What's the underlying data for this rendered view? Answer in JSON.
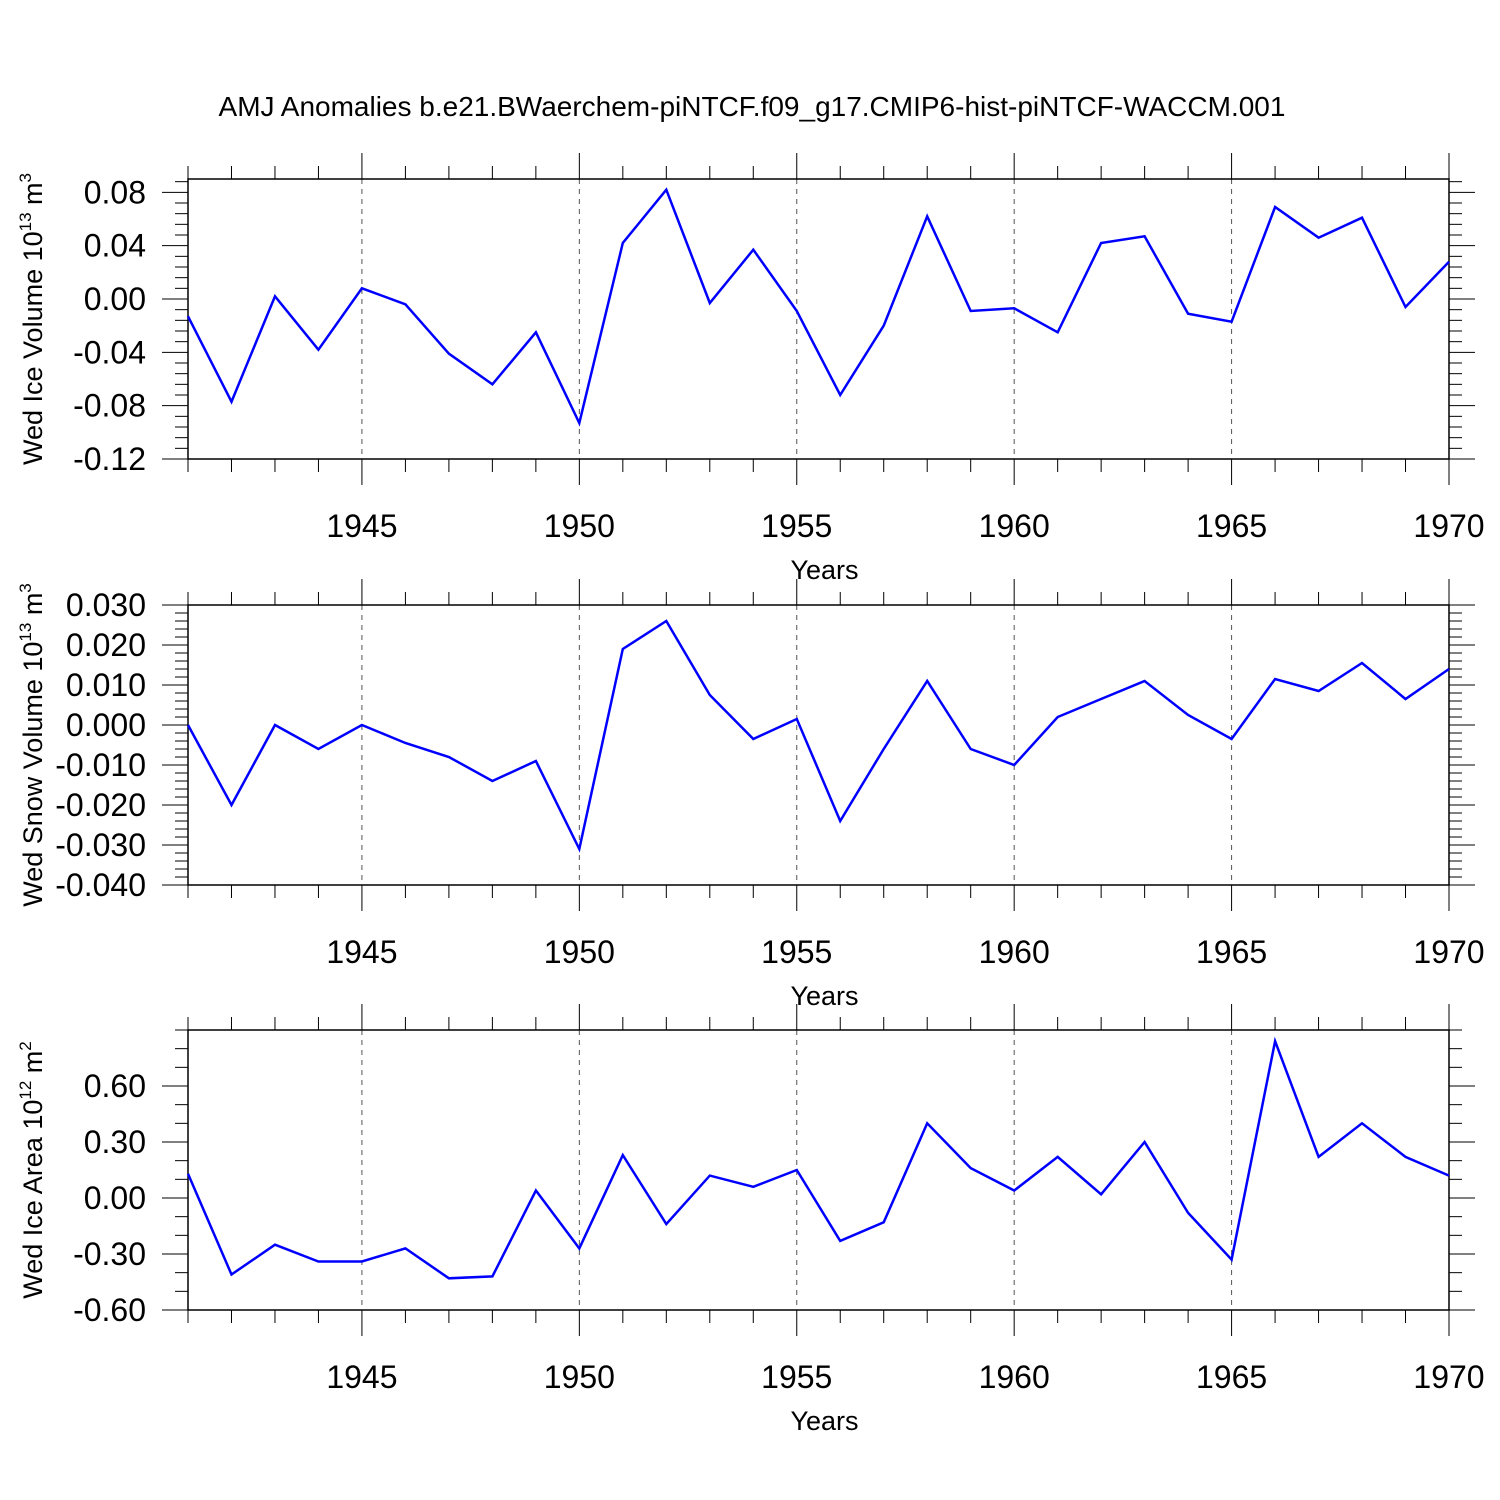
{
  "title": "AMJ Anomalies b.e21.BWaerchem-piNTCF.f09_g17.CMIP6-hist-piNTCF-WACCM.001",
  "colors": {
    "line": "#0000ff",
    "axis": "#000000",
    "grid": "#555555"
  },
  "chart_data": [
    {
      "type": "line",
      "name": "ice-volume",
      "ylabel": "Wed Ice Volume 10",
      "ylabel_exp": "13",
      "ylabel_unit": " m",
      "ylabel_unit_exp": "3",
      "xlabel": "Years",
      "xlim": [
        1941,
        1970
      ],
      "xticks": [
        1945,
        1950,
        1955,
        1960,
        1965,
        1970
      ],
      "ylim": [
        -0.12,
        0.09
      ],
      "yticks": [
        -0.12,
        -0.08,
        -0.04,
        0.0,
        0.04,
        0.08
      ],
      "ytick_labels": [
        "-0.12",
        "-0.08",
        "-0.04",
        "0.00",
        "0.04",
        "0.08"
      ],
      "yminor_step": 0.008,
      "grid": "vertical dashed at major x ticks",
      "x": [
        1941,
        1942,
        1943,
        1944,
        1945,
        1946,
        1947,
        1948,
        1949,
        1950,
        1951,
        1952,
        1953,
        1954,
        1955,
        1956,
        1957,
        1958,
        1959,
        1960,
        1961,
        1962,
        1963,
        1964,
        1965,
        1966,
        1967,
        1968,
        1969,
        1970
      ],
      "values": [
        -0.013,
        -0.077,
        0.002,
        -0.038,
        0.008,
        -0.004,
        -0.041,
        -0.064,
        -0.025,
        -0.093,
        0.042,
        0.082,
        -0.003,
        0.037,
        -0.009,
        -0.072,
        -0.02,
        0.062,
        -0.009,
        -0.007,
        -0.025,
        0.042,
        0.047,
        -0.011,
        -0.017,
        0.069,
        0.046,
        0.061,
        -0.006,
        0.028
      ]
    },
    {
      "type": "line",
      "name": "snow-volume",
      "ylabel": "Wed Snow Volume 10",
      "ylabel_exp": "13",
      "ylabel_unit": " m",
      "ylabel_unit_exp": "3",
      "xlabel": "Years",
      "xlim": [
        1941,
        1970
      ],
      "xticks": [
        1945,
        1950,
        1955,
        1960,
        1965,
        1970
      ],
      "ylim": [
        -0.04,
        0.03
      ],
      "yticks": [
        -0.04,
        -0.03,
        -0.02,
        -0.01,
        0.0,
        0.01,
        0.02,
        0.03
      ],
      "ytick_labels": [
        "-0.040",
        "-0.030",
        "-0.020",
        "-0.010",
        "0.000",
        "0.010",
        "0.020",
        "0.030"
      ],
      "yminor_step": 0.002,
      "grid": "vertical dashed at major x ticks",
      "x": [
        1941,
        1942,
        1943,
        1944,
        1945,
        1946,
        1947,
        1948,
        1949,
        1950,
        1951,
        1952,
        1953,
        1954,
        1955,
        1956,
        1957,
        1958,
        1959,
        1960,
        1961,
        1962,
        1963,
        1964,
        1965,
        1966,
        1967,
        1968,
        1969,
        1970
      ],
      "values": [
        0.0,
        -0.02,
        0.0,
        -0.006,
        0.0,
        -0.0045,
        -0.008,
        -0.014,
        -0.009,
        -0.031,
        0.019,
        0.026,
        0.0075,
        -0.0035,
        0.0015,
        -0.024,
        -0.006,
        0.011,
        -0.006,
        -0.01,
        0.002,
        0.0065,
        0.011,
        0.0025,
        -0.0035,
        0.0115,
        0.0085,
        0.0155,
        0.0065,
        0.014
      ]
    },
    {
      "type": "line",
      "name": "ice-area",
      "ylabel": "Wed Ice Area 10",
      "ylabel_exp": "12",
      "ylabel_unit": " m",
      "ylabel_unit_exp": "2",
      "xlabel": "Years",
      "xlim": [
        1941,
        1970
      ],
      "xticks": [
        1945,
        1950,
        1955,
        1960,
        1965,
        1970
      ],
      "ylim": [
        -0.6,
        0.9
      ],
      "yticks": [
        -0.6,
        -0.3,
        0.0,
        0.3,
        0.6
      ],
      "ytick_labels": [
        "-0.60",
        "-0.30",
        "0.00",
        "0.30",
        "0.60"
      ],
      "yminor_step": 0.1,
      "grid": "vertical dashed at major x ticks",
      "x": [
        1941,
        1942,
        1943,
        1944,
        1945,
        1946,
        1947,
        1948,
        1949,
        1950,
        1951,
        1952,
        1953,
        1954,
        1955,
        1956,
        1957,
        1958,
        1959,
        1960,
        1961,
        1962,
        1963,
        1964,
        1965,
        1966,
        1967,
        1968,
        1969,
        1970
      ],
      "values": [
        0.13,
        -0.41,
        -0.25,
        -0.34,
        -0.34,
        -0.27,
        -0.43,
        -0.42,
        0.04,
        -0.27,
        0.23,
        -0.14,
        0.12,
        0.06,
        0.15,
        -0.23,
        -0.13,
        0.4,
        0.16,
        0.04,
        0.22,
        0.02,
        0.3,
        -0.08,
        -0.33,
        0.84,
        0.22,
        0.4,
        0.22,
        0.12
      ]
    }
  ]
}
